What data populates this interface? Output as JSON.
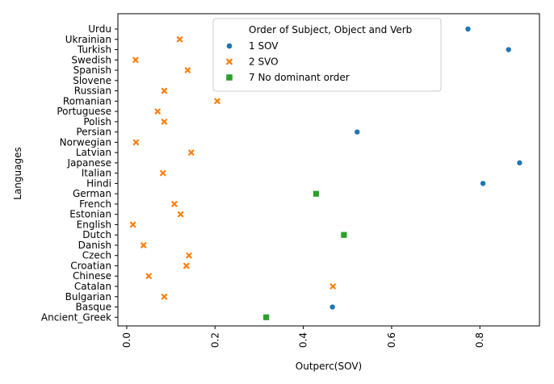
{
  "chart_data": {
    "type": "scatter",
    "xlabel": "Outperc(SOV)",
    "ylabel": "Languages",
    "xlim": [
      -0.02,
      0.935
    ],
    "xticks": [
      0.0,
      0.2,
      0.4,
      0.6,
      0.8
    ],
    "xtick_labels": [
      "0.0",
      "0.2",
      "0.4",
      "0.6",
      "0.8"
    ],
    "grid": false,
    "legend_position": "top-right",
    "legend": {
      "title": "Order of Subject, Object and Verb",
      "entries": [
        {
          "label": "1 SOV",
          "marker": "circle",
          "color": "#1f77b4"
        },
        {
          "label": "2 SVO",
          "marker": "x",
          "color": "#ff7f0e"
        },
        {
          "label": "7 No dominant order",
          "marker": "square",
          "color": "#2ca02c"
        }
      ]
    },
    "categories": [
      "Urdu",
      "Ukrainian",
      "Turkish",
      "Swedish",
      "Spanish",
      "Slovene",
      "Russian",
      "Romanian",
      "Portuguese",
      "Polish",
      "Persian",
      "Norwegian",
      "Latvian",
      "Japanese",
      "Italian",
      "Hindi",
      "German",
      "French",
      "Estonian",
      "English",
      "Dutch",
      "Danish",
      "Czech",
      "Croatian",
      "Chinese",
      "Catalan",
      "Bulgarian",
      "Basque",
      "Ancient_Greek"
    ],
    "series": [
      {
        "name": "1 SOV",
        "marker": "circle",
        "color": "#1f77b4",
        "points": [
          {
            "y": "Urdu",
            "x": 0.773
          },
          {
            "y": "Turkish",
            "x": 0.865
          },
          {
            "y": "Persian",
            "x": 0.522
          },
          {
            "y": "Japanese",
            "x": 0.89
          },
          {
            "y": "Hindi",
            "x": 0.807
          },
          {
            "y": "Basque",
            "x": 0.466
          }
        ]
      },
      {
        "name": "2 SVO",
        "marker": "x",
        "color": "#ff7f0e",
        "points": [
          {
            "y": "Ukrainian",
            "x": 0.12
          },
          {
            "y": "Swedish",
            "x": 0.02
          },
          {
            "y": "Spanish",
            "x": 0.138
          },
          {
            "y": "Russian",
            "x": 0.085
          },
          {
            "y": "Romanian",
            "x": 0.205
          },
          {
            "y": "Portuguese",
            "x": 0.07
          },
          {
            "y": "Polish",
            "x": 0.085
          },
          {
            "y": "Norwegian",
            "x": 0.021
          },
          {
            "y": "Latvian",
            "x": 0.146
          },
          {
            "y": "Italian",
            "x": 0.082
          },
          {
            "y": "French",
            "x": 0.108
          },
          {
            "y": "Estonian",
            "x": 0.122
          },
          {
            "y": "English",
            "x": 0.014
          },
          {
            "y": "Danish",
            "x": 0.038
          },
          {
            "y": "Czech",
            "x": 0.141
          },
          {
            "y": "Croatian",
            "x": 0.135
          },
          {
            "y": "Chinese",
            "x": 0.05
          },
          {
            "y": "Catalan",
            "x": 0.467
          },
          {
            "y": "Bulgarian",
            "x": 0.085
          }
        ]
      },
      {
        "name": "7 No dominant order",
        "marker": "square",
        "color": "#2ca02c",
        "points": [
          {
            "y": "German",
            "x": 0.429
          },
          {
            "y": "Dutch",
            "x": 0.492
          },
          {
            "y": "Ancient_Greek",
            "x": 0.316
          }
        ]
      }
    ]
  }
}
